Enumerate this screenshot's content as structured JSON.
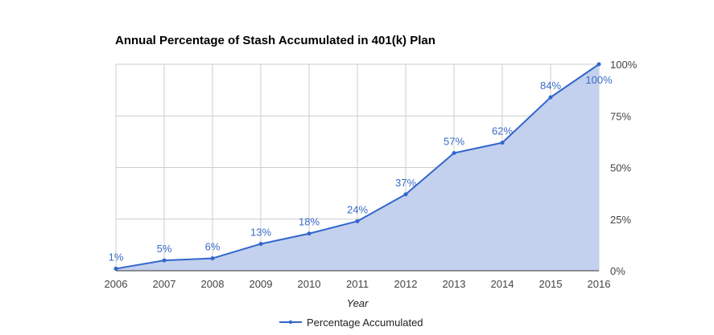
{
  "chart_data": {
    "type": "area",
    "title": "Annual Percentage of Stash Accumulated in 401(k) Plan",
    "xlabel": "Year",
    "ylabel": "",
    "categories": [
      "2006",
      "2007",
      "2008",
      "2009",
      "2010",
      "2011",
      "2012",
      "2013",
      "2014",
      "2015",
      "2016"
    ],
    "series": [
      {
        "name": "Percentage Accumulated",
        "values": [
          1,
          5,
          6,
          13,
          18,
          24,
          37,
          57,
          62,
          84,
          100
        ],
        "labels": [
          "1%",
          "5%",
          "6%",
          "13%",
          "18%",
          "24%",
          "37%",
          "57%",
          "62%",
          "84%",
          "100%"
        ]
      }
    ],
    "ylim": [
      0,
      100
    ],
    "yticks": [
      0,
      25,
      50,
      75,
      100
    ],
    "ytick_labels": [
      "0%",
      "25%",
      "50%",
      "75%",
      "100%"
    ],
    "y_axis_side": "right",
    "grid": true,
    "legend_position": "bottom",
    "colors": {
      "line": "#3366cc",
      "fill": "#c3d1ee",
      "grid": "#cccccc",
      "label": "#3a6ac6"
    }
  }
}
